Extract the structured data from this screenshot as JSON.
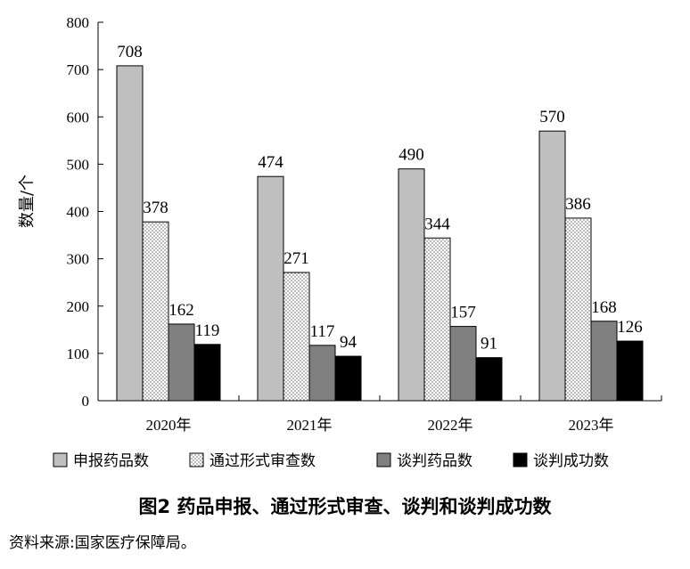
{
  "chart_data": {
    "type": "bar",
    "ylabel": "数量/个",
    "ylim": [
      0,
      800
    ],
    "yticks": [
      0,
      100,
      200,
      300,
      400,
      500,
      600,
      700,
      800
    ],
    "categories": [
      "2020年",
      "2021年",
      "2022年",
      "2023年"
    ],
    "series": [
      {
        "name": "申报药品数",
        "values": [
          708,
          474,
          490,
          570
        ],
        "color": "#bfbfbf",
        "pattern": "solid"
      },
      {
        "name": "通过形式审查数",
        "values": [
          378,
          271,
          344,
          386
        ],
        "color": "#ffffff",
        "pattern": "dots"
      },
      {
        "name": "谈判药品数",
        "values": [
          162,
          117,
          157,
          168
        ],
        "color": "#808080",
        "pattern": "solid"
      },
      {
        "name": "谈判成功数",
        "values": [
          119,
          94,
          91,
          126
        ],
        "color": "#000000",
        "pattern": "solid"
      }
    ],
    "legend_position": "bottom",
    "grid": false
  },
  "caption": "图2 药品申报、通过形式审查、谈判和谈判成功数",
  "source": "资料来源:国家医疗保障局。"
}
